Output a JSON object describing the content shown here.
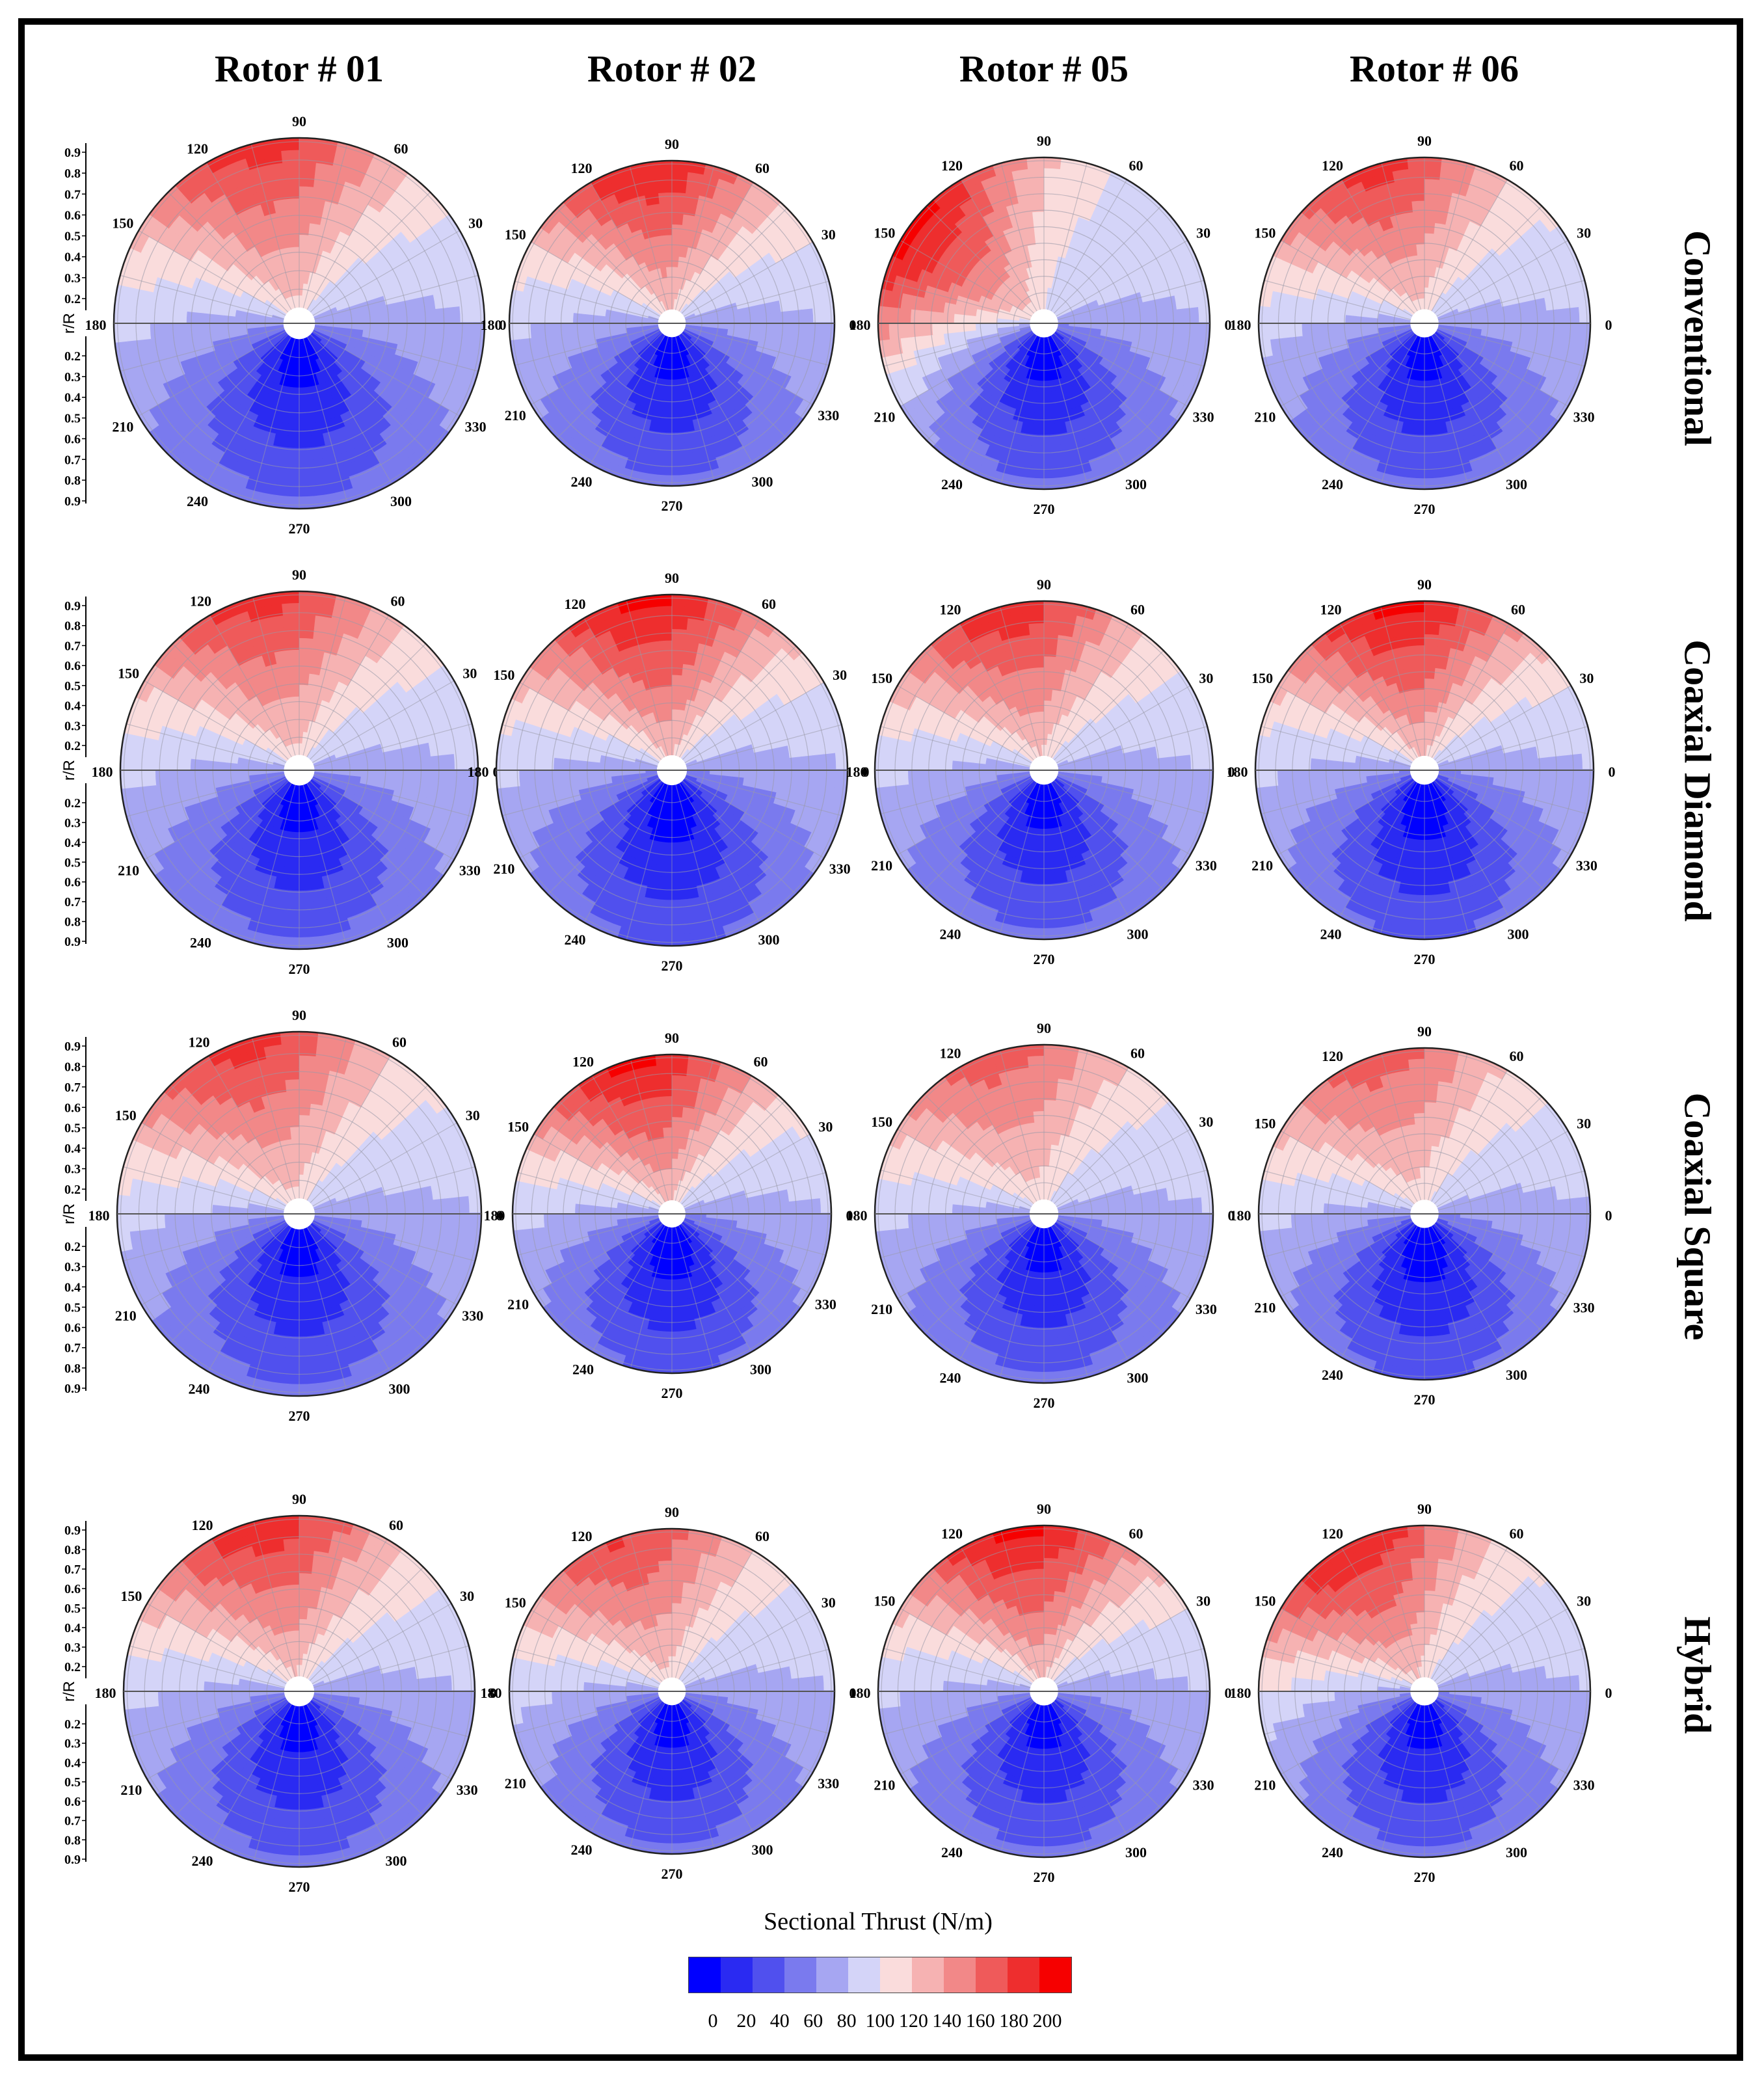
{
  "chart_data": {
    "type": "polar-contour",
    "title": "",
    "columns": [
      "Rotor # 01",
      "Rotor # 02",
      "Rotor # 05",
      "Rotor # 06"
    ],
    "rows": [
      "Conventional",
      "Coaxial Diamond",
      "Coaxial Square",
      "Hybrid"
    ],
    "radial_axis_label": "r/R",
    "radial_ticks": [
      "0.9",
      "0.8",
      "0.7",
      "0.6",
      "0.5",
      "0.4",
      "0.3",
      "0.2"
    ],
    "radial_ticks_lower": [
      "0.2",
      "0.3",
      "0.4",
      "0.5",
      "0.6",
      "0.7",
      "0.8",
      "0.9"
    ],
    "azimuth_ticks": [
      "0",
      "30",
      "60",
      "90",
      "120",
      "150",
      "180",
      "210",
      "240",
      "270",
      "300",
      "330"
    ],
    "azimuth_tick_values_deg": [
      0,
      30,
      60,
      90,
      120,
      150,
      180,
      210,
      240,
      270,
      300,
      330
    ],
    "colorbar": {
      "title": "Sectional Thrust (N/m)",
      "min": 0,
      "max": 200,
      "ticks": [
        "0",
        "20",
        "40",
        "60",
        "80",
        "100",
        "120",
        "140",
        "160",
        "180",
        "200"
      ],
      "colors": [
        "#0000ff",
        "#2a2af2",
        "#5050ee",
        "#7a7aee",
        "#a6a6f2",
        "#d4d4f8",
        "#fadcdc",
        "#f6b2b2",
        "#f28888",
        "#ef5a5a",
        "#ee2e2e",
        "#f60000"
      ]
    },
    "panels": [
      {
        "row": "Conventional",
        "column": "Rotor # 01",
        "peak_azimuth_deg": 105,
        "peak_value": 175,
        "min_value": 5
      },
      {
        "row": "Conventional",
        "column": "Rotor # 02",
        "peak_azimuth_deg": 100,
        "peak_value": 185,
        "min_value": 5
      },
      {
        "row": "Conventional",
        "column": "Rotor # 05",
        "peak_azimuth_deg": 145,
        "peak_value": 195,
        "min_value": 5
      },
      {
        "row": "Conventional",
        "column": "Rotor # 06",
        "peak_azimuth_deg": 110,
        "peak_value": 175,
        "min_value": 5
      },
      {
        "row": "Coaxial Diamond",
        "column": "Rotor # 01",
        "peak_azimuth_deg": 105,
        "peak_value": 175,
        "min_value": 5
      },
      {
        "row": "Coaxial Diamond",
        "column": "Rotor # 02",
        "peak_azimuth_deg": 100,
        "peak_value": 190,
        "min_value": 0
      },
      {
        "row": "Coaxial Diamond",
        "column": "Rotor # 05",
        "peak_azimuth_deg": 105,
        "peak_value": 180,
        "min_value": 5
      },
      {
        "row": "Coaxial Diamond",
        "column": "Rotor # 06",
        "peak_azimuth_deg": 100,
        "peak_value": 190,
        "min_value": 0
      },
      {
        "row": "Coaxial Square",
        "column": "Rotor # 01",
        "peak_azimuth_deg": 110,
        "peak_value": 175,
        "min_value": 5
      },
      {
        "row": "Coaxial Square",
        "column": "Rotor # 02",
        "peak_azimuth_deg": 105,
        "peak_value": 190,
        "min_value": 0
      },
      {
        "row": "Coaxial Square",
        "column": "Rotor # 05",
        "peak_azimuth_deg": 110,
        "peak_value": 160,
        "min_value": 5
      },
      {
        "row": "Coaxial Square",
        "column": "Rotor # 06",
        "peak_azimuth_deg": 110,
        "peak_value": 160,
        "min_value": 0
      },
      {
        "row": "Hybrid",
        "column": "Rotor # 01",
        "peak_azimuth_deg": 105,
        "peak_value": 180,
        "min_value": 5
      },
      {
        "row": "Hybrid",
        "column": "Rotor # 02",
        "peak_azimuth_deg": 110,
        "peak_value": 170,
        "min_value": 5
      },
      {
        "row": "Hybrid",
        "column": "Rotor # 05",
        "peak_azimuth_deg": 100,
        "peak_value": 190,
        "min_value": 5
      },
      {
        "row": "Hybrid",
        "column": "Rotor # 06",
        "peak_azimuth_deg": 120,
        "peak_value": 185,
        "min_value": 5
      }
    ]
  }
}
